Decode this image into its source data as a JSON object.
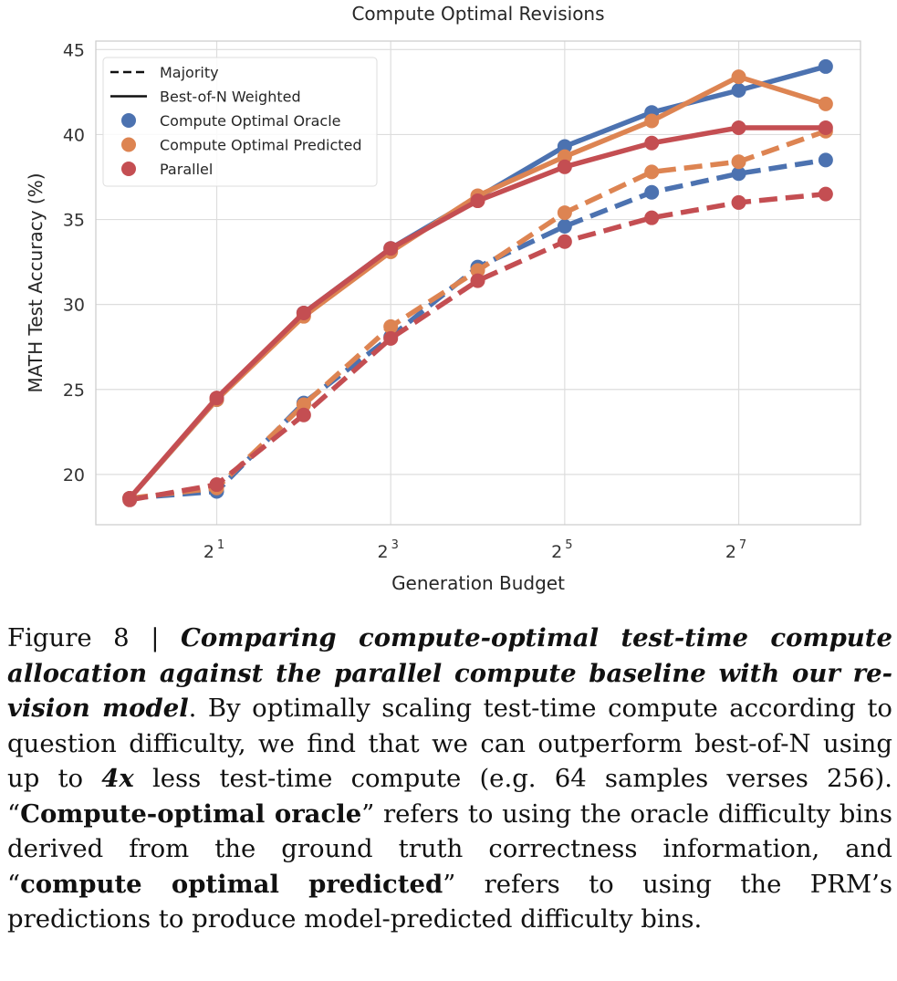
{
  "chart_data": {
    "type": "line",
    "title": "Compute Optimal Revisions",
    "xlabel": "Generation Budget",
    "ylabel": "MATH Test Accuracy (%)",
    "x_scale": "log2",
    "x": [
      1,
      2,
      4,
      8,
      16,
      32,
      64,
      128,
      256
    ],
    "x_ticks": [
      {
        "value": 2,
        "base": "2",
        "exp": "1"
      },
      {
        "value": 8,
        "base": "2",
        "exp": "3"
      },
      {
        "value": 32,
        "base": "2",
        "exp": "5"
      },
      {
        "value": 128,
        "base": "2",
        "exp": "7"
      }
    ],
    "ylim": [
      17.04,
      45.5
    ],
    "y_ticks": [
      "20",
      "25",
      "30",
      "35",
      "40",
      "45"
    ],
    "grid": true,
    "legend_position": "top-left",
    "legend": [
      {
        "label": "Majority",
        "kind": "dashed-line"
      },
      {
        "label": "Best-of-N Weighted",
        "kind": "solid-line"
      },
      {
        "label": "Compute Optimal Oracle",
        "kind": "marker",
        "color": "#4c72b0"
      },
      {
        "label": "Compute Optimal Predicted",
        "kind": "marker",
        "color": "#dd8452"
      },
      {
        "label": "Parallel",
        "kind": "marker",
        "color": "#c44e52"
      }
    ],
    "series": [
      {
        "name": "Compute Optimal Oracle",
        "style": "dashed",
        "color": "#4c72b0",
        "values": [
          18.6,
          19.0,
          24.2,
          28.1,
          32.2,
          34.6,
          36.6,
          37.7,
          38.5
        ]
      },
      {
        "name": "Compute Optimal Predicted",
        "style": "dashed",
        "color": "#dd8452",
        "values": [
          18.6,
          19.2,
          24.1,
          28.7,
          32.0,
          35.4,
          37.8,
          38.4,
          40.2
        ]
      },
      {
        "name": "Parallel",
        "style": "dashed",
        "color": "#c44e52",
        "values": [
          18.5,
          19.4,
          23.5,
          28.0,
          31.4,
          33.7,
          35.1,
          36.0,
          36.5
        ]
      },
      {
        "name": "Compute Optimal Oracle",
        "style": "solid",
        "color": "#4c72b0",
        "values": [
          18.6,
          24.4,
          29.5,
          33.3,
          36.3,
          39.3,
          41.3,
          42.6,
          44.0
        ]
      },
      {
        "name": "Compute Optimal Predicted",
        "style": "solid",
        "color": "#dd8452",
        "values": [
          18.6,
          24.4,
          29.3,
          33.1,
          36.4,
          38.7,
          40.8,
          43.4,
          41.8
        ]
      },
      {
        "name": "Parallel",
        "style": "solid",
        "color": "#c44e52",
        "values": [
          18.6,
          24.5,
          29.5,
          33.3,
          36.1,
          38.1,
          39.5,
          40.4,
          40.4
        ]
      }
    ]
  },
  "caption": {
    "label": "Figure 8 | ",
    "title": "Comparing compute-optimal test-time compute allocation against the parallel compute baseline with our re­vision model",
    "t1": ". By optimally scaling test-time compute according to question difficulty, we find that we can outperform best-of-N using up to ",
    "b1": "4x",
    "t2": " less test-time compute (e.g. 64 samples verses 256).  “",
    "b2": "Compute-optimal oracle",
    "t3": "” refers to using the oracle difficulty bins derived from the ground truth correctness infor­mation, and “",
    "b3": "compute optimal predicted",
    "t4": "” refers to using the PRM’s predictions to produce model-predicted difficulty bins."
  }
}
